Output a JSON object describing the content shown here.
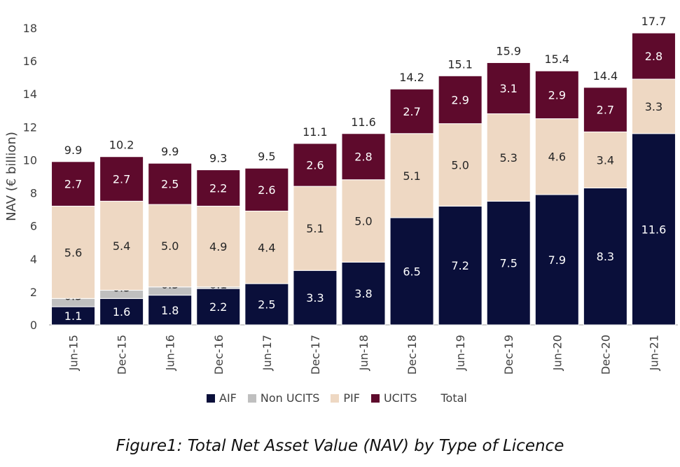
{
  "caption": "Figure1: Total Net Asset Value (NAV) by Type of Licence",
  "colors": {
    "AIF": "#0a0f3a",
    "Non UCITS": "#bfbfbf",
    "PIF": "#eed8c3",
    "UCITS": "#5e0a2c",
    "axis": "#bfbfbf",
    "text": "#404040"
  },
  "chart_data": {
    "type": "bar",
    "stacked": true,
    "ylabel": "NAV (€ billion)",
    "xlabel": "",
    "ylim": [
      0,
      18
    ],
    "yticks": [
      0,
      2,
      4,
      6,
      8,
      10,
      12,
      14,
      16,
      18
    ],
    "grid": false,
    "legend_position": "bottom",
    "categories": [
      "Jun-15",
      "Dec-15",
      "Jun-16",
      "Dec-16",
      "Jun-17",
      "Dec-17",
      "Jun-18",
      "Dec-18",
      "Jun-19",
      "Dec-19",
      "Jun-20",
      "Dec-20",
      "Jun-21"
    ],
    "series": [
      {
        "name": "AIF",
        "values": [
          1.1,
          1.6,
          1.8,
          2.2,
          2.5,
          3.3,
          3.8,
          6.5,
          7.2,
          7.5,
          7.9,
          8.3,
          11.6
        ],
        "labels": [
          "1.1",
          "1.6",
          "1.8",
          "2.2",
          "2.5",
          "3.3",
          "3.8",
          "6.5",
          "7.2",
          "7.5",
          "7.9",
          "8.3",
          "11.6"
        ]
      },
      {
        "name": "Non UCITS",
        "values": [
          0.5,
          0.5,
          0.5,
          0.1,
          0,
          0,
          0,
          0,
          0,
          0,
          0,
          0,
          0
        ],
        "labels": [
          "0.5",
          "0.5",
          "0.5",
          "0.1",
          "",
          "",
          "",
          "",
          "",
          "",
          "",
          "",
          ""
        ]
      },
      {
        "name": "PIF",
        "values": [
          5.6,
          5.4,
          5.0,
          4.9,
          4.4,
          5.1,
          5.0,
          5.1,
          5.0,
          5.3,
          4.6,
          3.4,
          3.3
        ],
        "labels": [
          "5.6",
          "5.4",
          "5.0",
          "4.9",
          "4.4",
          "5.1",
          "5.0",
          "5.1",
          "5.0",
          "5.3",
          "4.6",
          "3.4",
          "3.3"
        ]
      },
      {
        "name": "UCITS",
        "values": [
          2.7,
          2.7,
          2.5,
          2.2,
          2.6,
          2.6,
          2.8,
          2.7,
          2.9,
          3.1,
          2.9,
          2.7,
          2.8
        ],
        "labels": [
          "2.7",
          "2.7",
          "2.5",
          "2.2",
          "2.6",
          "2.6",
          "2.8",
          "2.7",
          "2.9",
          "3.1",
          "2.9",
          "2.7",
          "2.8"
        ]
      }
    ],
    "totals": [
      "9.9",
      "10.2",
      "9.9",
      "9.3",
      "9.5",
      "11.1",
      "11.6",
      "14.2",
      "15.1",
      "15.9",
      "15.4",
      "14.4",
      "17.7"
    ],
    "legend": [
      "AIF",
      "Non UCITS",
      "PIF",
      "UCITS",
      "Total"
    ]
  }
}
